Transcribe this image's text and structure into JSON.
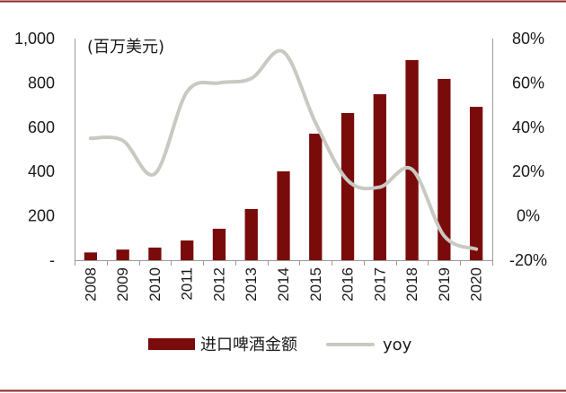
{
  "chart_data": {
    "type": "bar",
    "categories": [
      "2008",
      "2009",
      "2010",
      "2011",
      "2012",
      "2013",
      "2014",
      "2015",
      "2016",
      "2017",
      "2018",
      "2019",
      "2020"
    ],
    "series": [
      {
        "name": "进口啤酒金额",
        "type": "bar",
        "axis": "left",
        "values": [
          35,
          48,
          57,
          89,
          142,
          231,
          401,
          571,
          664,
          749,
          903,
          818,
          692
        ]
      },
      {
        "name": "yoy",
        "type": "line",
        "axis": "right",
        "values": [
          35,
          34,
          19,
          56,
          60,
          62,
          74,
          42,
          16,
          13,
          21,
          -9,
          -15
        ]
      }
    ],
    "ylabel": "(百万美元)",
    "ylim": [
      0,
      1000
    ],
    "ylim_right": [
      -20,
      80
    ],
    "yticks": [
      0,
      200,
      400,
      600,
      800,
      1000
    ],
    "ytick_labels": [
      "-",
      "200",
      "400",
      "600",
      "800",
      "1,000"
    ],
    "yticks_right": [
      -20,
      0,
      20,
      40,
      60,
      80
    ],
    "ytick_labels_right": [
      "-20%",
      "0%",
      "20%",
      "40%",
      "60%",
      "80%"
    ],
    "legend": "bottom",
    "grid": false,
    "colors": {
      "bar": "#7a0b0b",
      "line": "#c9c9c1",
      "frame": "#8b2525",
      "axis": "#9a9a9a"
    }
  }
}
